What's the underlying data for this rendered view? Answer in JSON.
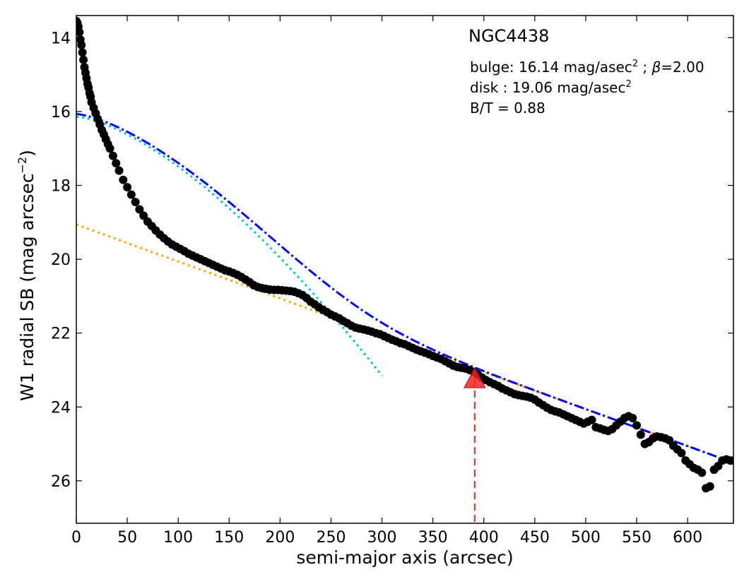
{
  "chart_data": {
    "type": "scatter",
    "title": "NGC4438",
    "xlabel": "semi-major axis (arcsec)",
    "ylabel_main": "W1 radial SB (mag arcsec",
    "ylabel_exp": "−2",
    "ylabel_close": ")",
    "xlim": [
      0,
      645
    ],
    "ylim": [
      27.15,
      13.4
    ],
    "y_inverted": true,
    "grid": false,
    "xticks": [
      0,
      50,
      100,
      150,
      200,
      250,
      300,
      350,
      400,
      450,
      500,
      550,
      600
    ],
    "yticks": [
      14,
      16,
      18,
      20,
      22,
      24,
      26
    ],
    "annotations": {
      "bulge_prefix": "bulge: 16.14 mag/asec",
      "bulge_sup": "2",
      "bulge_sep": " ; ",
      "bulge_beta_symbol": "β",
      "bulge_beta_value": "=2.00",
      "disk_prefix": "disk  : 19.06 mag/asec",
      "disk_sup": "2",
      "bt": "B/T = 0.88"
    },
    "model": {
      "bulge_mu0": 16.14,
      "beta": 2.0,
      "disk_mu0": 19.06
    },
    "marker_x": 391,
    "marker_y": 23.25,
    "colors": {
      "data": "#000000",
      "total_model": "#0000ff",
      "bulge_model": "#00c8c8",
      "disk_model": "#ffa500",
      "marker": "#ee2222"
    },
    "series": [
      {
        "x": [
          0,
          1,
          2,
          3,
          4,
          5,
          6,
          7,
          8,
          9,
          10,
          11,
          12,
          13,
          14,
          15,
          17,
          19,
          21,
          23,
          25,
          27,
          29,
          31,
          33,
          36,
          39,
          42,
          46,
          50,
          54,
          58,
          62,
          66,
          70,
          74,
          78,
          82,
          86,
          90,
          94,
          98,
          102,
          106,
          110,
          114,
          118,
          122,
          126,
          130,
          134,
          138,
          142,
          146,
          150,
          154,
          158,
          162,
          166,
          170,
          174,
          178,
          182,
          186,
          190,
          194,
          198,
          202,
          206,
          210,
          214,
          218,
          222,
          226,
          230,
          234,
          238,
          242,
          246,
          250,
          254,
          258,
          262,
          266,
          270,
          274,
          278,
          282,
          286,
          290,
          294,
          298,
          302,
          306,
          310,
          314,
          318,
          322,
          326,
          330,
          334,
          338,
          342,
          346,
          350,
          354,
          358,
          362,
          366,
          370,
          374,
          378,
          382,
          386,
          390,
          394,
          398,
          402,
          406,
          410,
          414,
          418,
          422,
          426,
          430,
          434,
          438,
          442,
          446,
          450,
          454,
          458,
          462,
          466,
          470,
          474,
          478,
          482,
          486,
          490,
          494,
          498,
          502,
          506,
          510,
          514,
          518,
          522,
          526,
          530,
          534,
          538,
          542,
          546,
          550,
          554,
          558,
          562,
          566,
          570,
          574,
          578,
          582,
          586,
          590,
          594,
          598,
          602,
          606,
          610,
          614,
          618,
          622,
          626,
          630,
          634,
          638,
          642,
          645
        ],
        "y": [
          13.55,
          13.6,
          13.7,
          13.85,
          14.05,
          14.2,
          14.4,
          14.6,
          14.8,
          14.95,
          15.1,
          15.25,
          15.35,
          15.5,
          15.6,
          15.75,
          15.9,
          16.05,
          16.2,
          16.35,
          16.5,
          16.62,
          16.75,
          16.88,
          17.0,
          17.2,
          17.4,
          17.6,
          17.85,
          18.05,
          18.25,
          18.45,
          18.65,
          18.82,
          18.98,
          19.1,
          19.22,
          19.33,
          19.43,
          19.52,
          19.6,
          19.66,
          19.72,
          19.78,
          19.85,
          19.9,
          19.95,
          20.0,
          20.05,
          20.1,
          20.15,
          20.2,
          20.25,
          20.3,
          20.33,
          20.37,
          20.42,
          20.48,
          20.55,
          20.62,
          20.7,
          20.75,
          20.78,
          20.8,
          20.82,
          20.83,
          20.83,
          20.84,
          20.85,
          20.86,
          20.88,
          20.92,
          20.97,
          21.05,
          21.15,
          21.22,
          21.3,
          21.37,
          21.43,
          21.5,
          21.55,
          21.6,
          21.67,
          21.73,
          21.8,
          21.85,
          21.88,
          21.9,
          21.93,
          21.96,
          22.0,
          22.03,
          22.08,
          22.13,
          22.18,
          22.22,
          22.27,
          22.3,
          22.35,
          22.4,
          22.45,
          22.49,
          22.53,
          22.57,
          22.62,
          22.66,
          22.7,
          22.76,
          22.82,
          22.88,
          22.92,
          22.94,
          22.96,
          23.0,
          23.05,
          23.12,
          23.2,
          23.27,
          23.33,
          23.38,
          23.43,
          23.5,
          23.55,
          23.6,
          23.65,
          23.68,
          23.7,
          23.72,
          23.75,
          23.8,
          23.88,
          23.95,
          24.02,
          24.08,
          24.12,
          24.15,
          24.2,
          24.25,
          24.3,
          24.35,
          24.4,
          24.45,
          24.4,
          24.35,
          24.55,
          24.58,
          24.62,
          24.65,
          24.6,
          24.5,
          24.4,
          24.3,
          24.25,
          24.3,
          24.5,
          24.75,
          25.0,
          24.95,
          24.85,
          24.8,
          24.82,
          24.85,
          24.9,
          25.05,
          25.15,
          25.25,
          25.45,
          25.55,
          25.65,
          25.7,
          25.78,
          26.2,
          26.15,
          25.7,
          25.6,
          25.45,
          25.42,
          25.45,
          25.45
        ]
      }
    ]
  }
}
